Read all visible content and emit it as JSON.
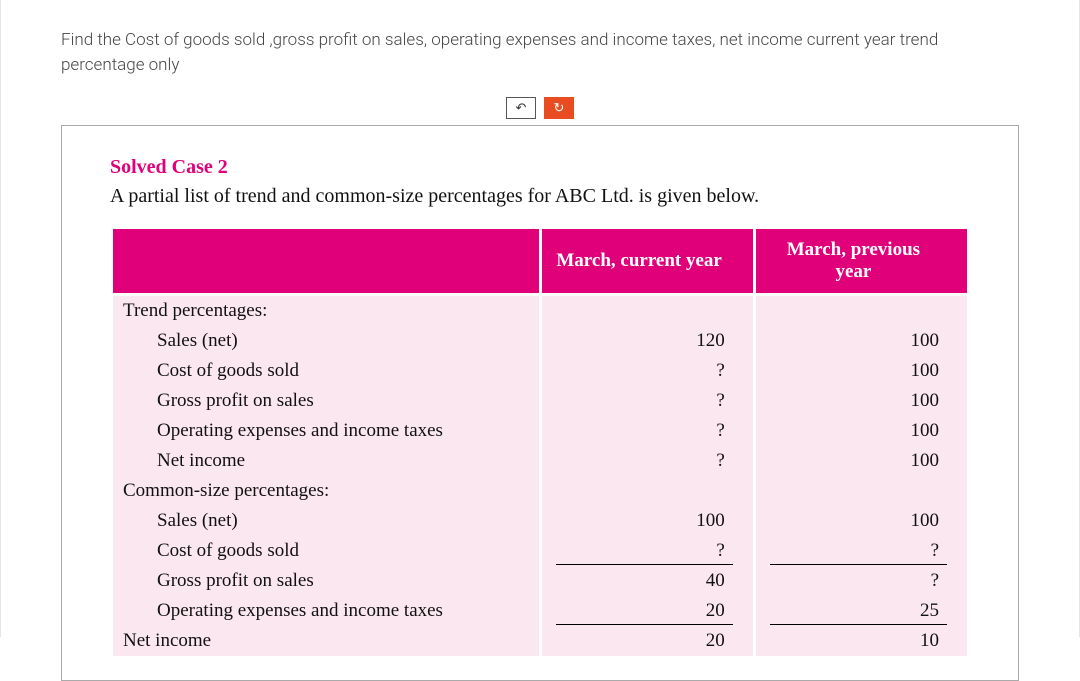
{
  "prompt_text": "Find the Cost of goods sold ,gross profit on sales, operating expenses and income taxes, net income current year trend percentage only",
  "buttons": {
    "undo": "↶",
    "redo": "↻"
  },
  "case": {
    "title": "Solved Case 2",
    "subtitle": "A partial list of trend and common-size percentages for ABC Ltd. is given below."
  },
  "headers": {
    "blank": "",
    "col1": "March, current year",
    "col2": "March, previous year"
  },
  "sections": {
    "trend_label": "Trend percentages:",
    "common_label": "Common-size percentages:"
  },
  "rows": {
    "trend": {
      "sales": {
        "label": "Sales (net)",
        "cur": "120",
        "prev": "100"
      },
      "cogs": {
        "label": "Cost of goods sold",
        "cur": "?",
        "prev": "100"
      },
      "gross": {
        "label": "Gross profit on sales",
        "cur": "?",
        "prev": "100"
      },
      "opex": {
        "label": "Operating expenses and income taxes",
        "cur": "?",
        "prev": "100"
      },
      "net": {
        "label": "Net income",
        "cur": "?",
        "prev": "100"
      }
    },
    "common": {
      "sales": {
        "label": "Sales (net)",
        "cur": "100",
        "prev": "100"
      },
      "cogs": {
        "label": "Cost of goods sold",
        "cur": "?",
        "prev": "?"
      },
      "gross": {
        "label": "Gross profit on sales",
        "cur": "40",
        "prev": "?"
      },
      "opex": {
        "label": "Operating expenses and income taxes",
        "cur": "20",
        "prev": "25"
      },
      "net": {
        "label": "Net income",
        "cur": "20",
        "prev": "10"
      }
    }
  },
  "colors": {
    "magenta": "#e0007a",
    "row_bg": "#fbe7ef",
    "redo_bg": "#e84c20"
  }
}
